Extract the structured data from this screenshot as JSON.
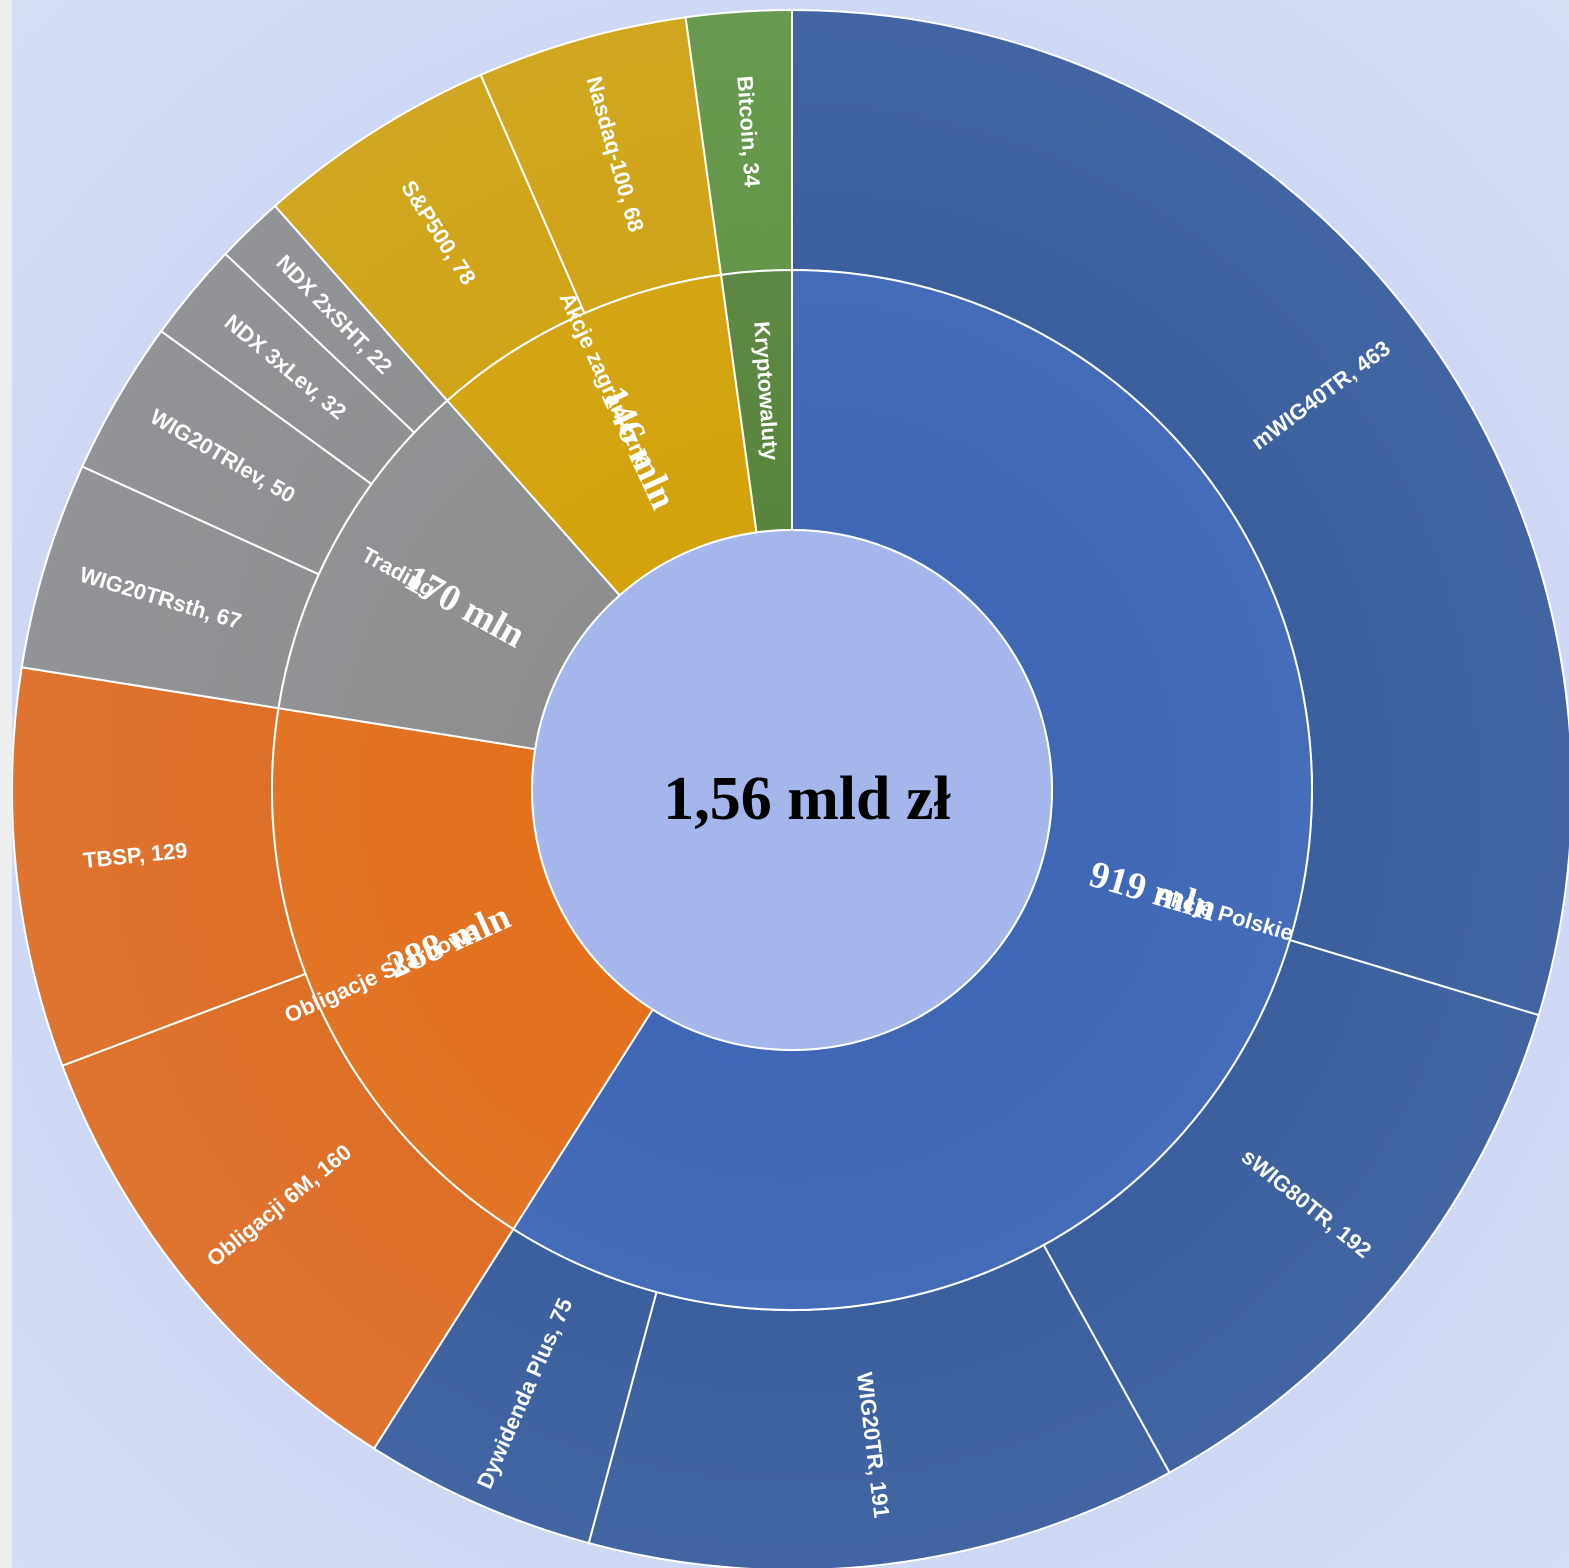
{
  "chart_data": {
    "type": "sunburst",
    "center_label": "1,56 mld zł",
    "categories": [
      {
        "name": "Akcje Polskie",
        "value_label": "919 mln",
        "color": "#3a63b4",
        "outer_color": "#2f5597",
        "children": [
          {
            "name": "mWIG40TR",
            "value": 463,
            "label": "mWIG40TR, 463"
          },
          {
            "name": "sWIG80TR",
            "value": 192,
            "label": "sWIG80TR, 192"
          },
          {
            "name": "WIG20TR",
            "value": 191,
            "label": "WIG20TR, 191"
          },
          {
            "name": "Dywidenda Plus",
            "value": 75,
            "label": "Dywidenda Plus, 75"
          }
        ]
      },
      {
        "name": "Obligacje Skarbowe",
        "value_label": "288 mln",
        "color": "#e46c14",
        "outer_color": "#e06616",
        "children": [
          {
            "name": "Obligacji 6M",
            "value": 160,
            "label": "Obligacji 6M, 160"
          },
          {
            "name": "TBSP",
            "value": 129,
            "label": "TBSP, 129"
          }
        ]
      },
      {
        "name": "Trading",
        "value_label": "170 mln",
        "color": "#8c8c8c",
        "outer_color": "#8a8a8a",
        "children": [
          {
            "name": "WIG20TRsth",
            "value": 67,
            "label": "WIG20TRsth, 67"
          },
          {
            "name": "WIG20TRlev",
            "value": 50,
            "label": "WIG20TRlev, 50"
          },
          {
            "name": "NDX 3xLev",
            "value": 32,
            "label": "NDX 3xLev, 32"
          },
          {
            "name": "NDX 2xSHT",
            "value": 22,
            "label": "NDX 2xSHT, 22"
          }
        ]
      },
      {
        "name": "Akcje zagraniczne",
        "value_label": "146 mln",
        "color": "#d4a102",
        "outer_color": "#d1a004",
        "children": [
          {
            "name": "S&P500",
            "value": 78,
            "label": "S&P500, 78"
          },
          {
            "name": "Nasdaq-100",
            "value": 68,
            "label": "Nasdaq-100, 68"
          }
        ]
      },
      {
        "name": "Kryptowaluty",
        "value_label": "",
        "color": "#548235",
        "outer_color": "#5a9139",
        "children": [
          {
            "name": "Bitcoin",
            "value": 34,
            "label": "Bitcoin, 34"
          }
        ]
      }
    ]
  }
}
